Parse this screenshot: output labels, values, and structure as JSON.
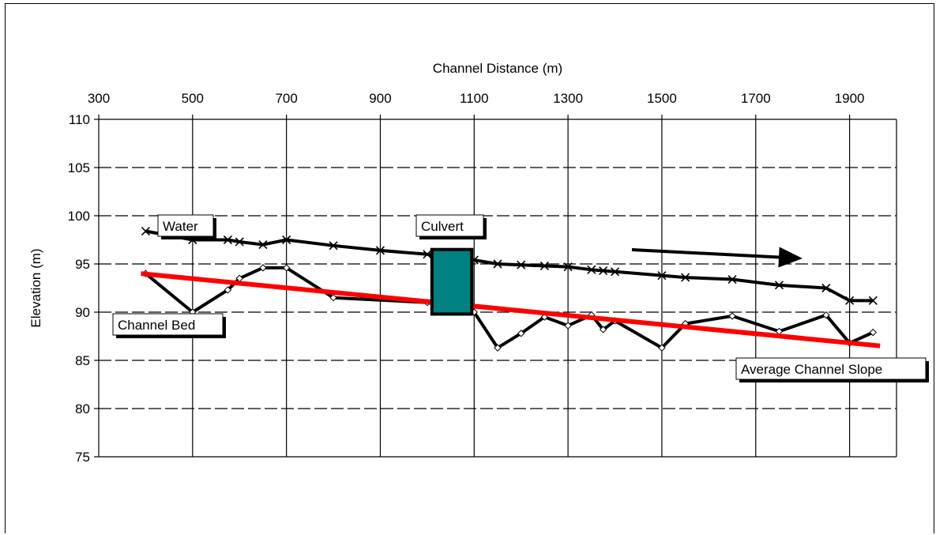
{
  "chart_data": {
    "type": "line",
    "title": "",
    "xlabel": "Channel Distance (m)",
    "ylabel": "Elevation (m)",
    "xlim": [
      300,
      2000
    ],
    "ylim": [
      75,
      110
    ],
    "x_ticks": [
      300,
      500,
      700,
      900,
      1100,
      1300,
      1500,
      1700,
      1900
    ],
    "y_ticks": [
      110,
      105,
      100,
      95,
      90,
      85,
      80,
      75
    ],
    "x_axis_position": "top",
    "grid": {
      "vertical": "solid",
      "horizontal": "dashed"
    },
    "series": [
      {
        "name": "Water",
        "marker": "x",
        "color": "#000000",
        "points": [
          [
            400,
            98.4
          ],
          [
            500,
            97.5
          ],
          [
            575,
            97.5
          ],
          [
            600,
            97.3
          ],
          [
            650,
            97.0
          ],
          [
            700,
            97.5
          ],
          [
            800,
            96.9
          ],
          [
            900,
            96.4
          ],
          [
            1000,
            96.0
          ],
          [
            1100,
            95.4
          ],
          [
            1150,
            95.0
          ],
          [
            1200,
            94.9
          ],
          [
            1250,
            94.8
          ],
          [
            1300,
            94.7
          ],
          [
            1350,
            94.4
          ],
          [
            1375,
            94.3
          ],
          [
            1400,
            94.2
          ],
          [
            1500,
            93.8
          ],
          [
            1550,
            93.6
          ],
          [
            1650,
            93.4
          ],
          [
            1750,
            92.8
          ],
          [
            1850,
            92.5
          ],
          [
            1900,
            91.2
          ],
          [
            1950,
            91.2
          ]
        ]
      },
      {
        "name": "Channel Bed",
        "marker": "diamond",
        "color": "#000000",
        "points": [
          [
            400,
            94.0
          ],
          [
            500,
            90.0
          ],
          [
            575,
            92.3
          ],
          [
            600,
            93.5
          ],
          [
            650,
            94.6
          ],
          [
            700,
            94.6
          ],
          [
            800,
            91.5
          ],
          [
            1000,
            91.0
          ],
          [
            1100,
            90.0
          ],
          [
            1150,
            86.3
          ],
          [
            1200,
            87.8
          ],
          [
            1250,
            89.5
          ],
          [
            1300,
            88.6
          ],
          [
            1350,
            89.7
          ],
          [
            1375,
            88.2
          ],
          [
            1400,
            89.1
          ],
          [
            1500,
            86.3
          ],
          [
            1550,
            88.8
          ],
          [
            1650,
            89.6
          ],
          [
            1750,
            88.0
          ],
          [
            1850,
            89.7
          ],
          [
            1900,
            86.8
          ],
          [
            1950,
            87.9
          ]
        ]
      },
      {
        "name": "Average Channel Slope",
        "color": "#ff0000",
        "points": [
          [
            390,
            94.0
          ],
          [
            1965,
            86.5
          ]
        ]
      }
    ],
    "culvert": {
      "x_range": [
        1010,
        1095
      ],
      "y_range": [
        89.8,
        96.5
      ],
      "color": "#008080"
    },
    "annotations": [
      {
        "text": "Water",
        "near": "water series start"
      },
      {
        "text": "Culvert",
        "near": "culvert box"
      },
      {
        "text": "Channel Bed",
        "near": "channel bed start"
      },
      {
        "text": "Average Channel Slope",
        "near": "slope line end"
      },
      {
        "type": "arrow",
        "direction": "downstream (right)"
      }
    ]
  }
}
